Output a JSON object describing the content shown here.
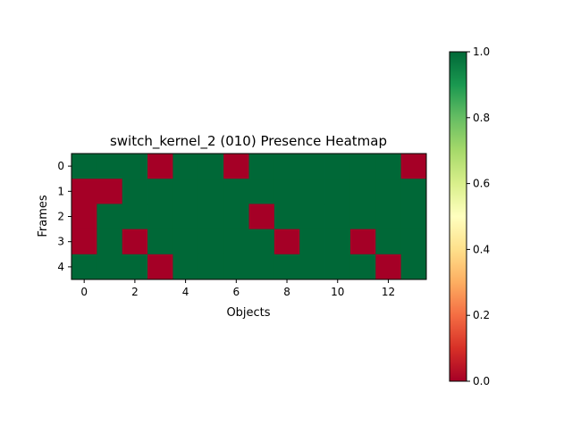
{
  "chart_data": {
    "type": "heatmap",
    "title": "switch_kernel_2 (010) Presence Heatmap",
    "xlabel": "Objects",
    "ylabel": "Frames",
    "x_ticks": [
      "0",
      "2",
      "4",
      "6",
      "8",
      "10",
      "12"
    ],
    "y_ticks": [
      "0",
      "1",
      "2",
      "3",
      "4"
    ],
    "n_cols": 14,
    "n_rows": 5,
    "values": [
      [
        1,
        1,
        1,
        0,
        1,
        1,
        0,
        1,
        1,
        1,
        1,
        1,
        1,
        0
      ],
      [
        0,
        0,
        1,
        1,
        1,
        1,
        1,
        1,
        1,
        1,
        1,
        1,
        1,
        1
      ],
      [
        0,
        1,
        1,
        1,
        1,
        1,
        1,
        0,
        1,
        1,
        1,
        1,
        1,
        1
      ],
      [
        0,
        1,
        0,
        1,
        1,
        1,
        1,
        1,
        0,
        1,
        1,
        0,
        1,
        1
      ],
      [
        1,
        1,
        1,
        0,
        1,
        1,
        1,
        1,
        1,
        1,
        1,
        1,
        0,
        1
      ]
    ],
    "colormap": "RdYlGn",
    "vmin": 0.0,
    "vmax": 1.0,
    "colorbar_ticks": [
      "0.0",
      "0.2",
      "0.4",
      "0.6",
      "0.8",
      "1.0"
    ],
    "colors": {
      "low": "#a50026",
      "high": "#006837"
    }
  }
}
